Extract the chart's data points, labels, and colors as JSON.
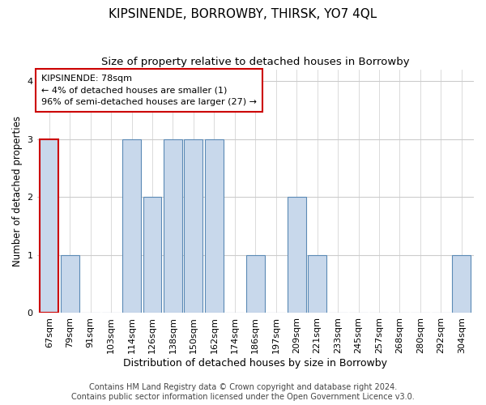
{
  "title": "KIPSINENDE, BORROWBY, THIRSK, YO7 4QL",
  "subtitle": "Size of property relative to detached houses in Borrowby",
  "xlabel": "Distribution of detached houses by size in Borrowby",
  "ylabel": "Number of detached properties",
  "categories": [
    "67sqm",
    "79sqm",
    "91sqm",
    "103sqm",
    "114sqm",
    "126sqm",
    "138sqm",
    "150sqm",
    "162sqm",
    "174sqm",
    "186sqm",
    "197sqm",
    "209sqm",
    "221sqm",
    "233sqm",
    "245sqm",
    "257sqm",
    "268sqm",
    "280sqm",
    "292sqm",
    "304sqm"
  ],
  "values": [
    3,
    1,
    0,
    0,
    3,
    2,
    3,
    3,
    3,
    0,
    1,
    0,
    2,
    1,
    0,
    0,
    0,
    0,
    0,
    0,
    1
  ],
  "bar_color": "#c8d8eb",
  "bar_edge_color": "#5b8ab5",
  "highlight_bar_index": 0,
  "highlight_bar_edge_color": "#cc0000",
  "annotation_box_text": "KIPSINENDE: 78sqm\n← 4% of detached houses are smaller (1)\n96% of semi-detached houses are larger (27) →",
  "annotation_box_edge_color": "#cc0000",
  "ylim": [
    0,
    4.2
  ],
  "yticks": [
    0,
    1,
    2,
    3,
    4
  ],
  "footer_line1": "Contains HM Land Registry data © Crown copyright and database right 2024.",
  "footer_line2": "Contains public sector information licensed under the Open Government Licence v3.0.",
  "background_color": "#ffffff",
  "plot_background_color": "#ffffff",
  "grid_color": "#cccccc",
  "title_fontsize": 11,
  "subtitle_fontsize": 9.5,
  "xlabel_fontsize": 9,
  "ylabel_fontsize": 8.5,
  "tick_fontsize": 8,
  "annotation_fontsize": 8,
  "footer_fontsize": 7
}
